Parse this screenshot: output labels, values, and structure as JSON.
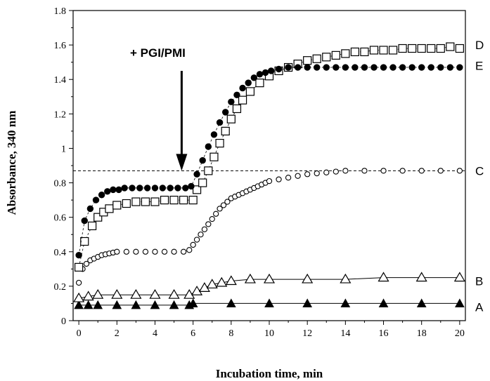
{
  "chart_data": {
    "type": "scatter",
    "xlabel": "Incubation time,  min",
    "ylabel": "Absorbance,  340 nm",
    "xlim": [
      -0.3,
      20.3
    ],
    "ylim": [
      0,
      1.8
    ],
    "x_ticks": [
      0,
      2,
      4,
      6,
      8,
      10,
      12,
      14,
      16,
      18,
      20
    ],
    "y_ticks": [
      0,
      0.2,
      0.4,
      0.6,
      0.8,
      1,
      1.2,
      1.4,
      1.6,
      1.8
    ],
    "grid": false,
    "reference_line": {
      "y": 0.87,
      "style": "dashed"
    },
    "annotation": {
      "text": "+  PGI/PMI",
      "arrow_x": 5.4,
      "arrow_from_y": 1.45,
      "arrow_to_y": 0.87
    },
    "series": [
      {
        "name": "A",
        "marker": "filled-triangle",
        "color": "#000000",
        "x": [
          0,
          0.5,
          1,
          2,
          3,
          4,
          5,
          5.8,
          6,
          8,
          10,
          12,
          14,
          16,
          18,
          20
        ],
        "y": [
          0.09,
          0.09,
          0.09,
          0.09,
          0.09,
          0.09,
          0.09,
          0.09,
          0.1,
          0.1,
          0.1,
          0.1,
          0.1,
          0.1,
          0.1,
          0.1
        ]
      },
      {
        "name": "B",
        "marker": "open-triangle",
        "color": "#000000",
        "x": [
          0,
          0.5,
          1,
          2,
          3,
          4,
          5,
          5.8,
          6.2,
          6.6,
          7,
          7.5,
          8,
          9,
          10,
          12,
          14,
          16,
          18,
          20
        ],
        "y": [
          0.13,
          0.14,
          0.15,
          0.15,
          0.15,
          0.15,
          0.15,
          0.15,
          0.17,
          0.19,
          0.21,
          0.22,
          0.23,
          0.24,
          0.24,
          0.24,
          0.24,
          0.25,
          0.25,
          0.25
        ]
      },
      {
        "name": "C",
        "marker": "open-circle",
        "color": "#000000",
        "x": [
          0,
          0.2,
          0.4,
          0.6,
          0.8,
          1,
          1.2,
          1.4,
          1.6,
          1.8,
          2,
          2.5,
          3,
          3.5,
          4,
          4.5,
          5,
          5.5,
          5.8,
          6,
          6.2,
          6.4,
          6.6,
          6.8,
          7,
          7.2,
          7.4,
          7.6,
          7.8,
          8,
          8.2,
          8.4,
          8.6,
          8.8,
          9,
          9.2,
          9.4,
          9.6,
          9.8,
          10,
          10.5,
          11,
          11.5,
          12,
          12.5,
          13,
          13.5,
          14,
          15,
          16,
          17,
          18,
          19,
          20
        ],
        "y": [
          0.22,
          0.3,
          0.33,
          0.35,
          0.36,
          0.37,
          0.38,
          0.385,
          0.39,
          0.395,
          0.4,
          0.4,
          0.4,
          0.4,
          0.4,
          0.4,
          0.4,
          0.4,
          0.41,
          0.44,
          0.47,
          0.5,
          0.53,
          0.56,
          0.59,
          0.62,
          0.65,
          0.67,
          0.69,
          0.71,
          0.72,
          0.73,
          0.74,
          0.75,
          0.76,
          0.77,
          0.78,
          0.79,
          0.8,
          0.81,
          0.82,
          0.83,
          0.84,
          0.85,
          0.855,
          0.86,
          0.865,
          0.87,
          0.87,
          0.87,
          0.87,
          0.87,
          0.87,
          0.87
        ]
      },
      {
        "name": "D",
        "marker": "open-square",
        "color": "#000000",
        "x": [
          0,
          0.3,
          0.7,
          1,
          1.3,
          1.6,
          2,
          2.5,
          3,
          3.5,
          4,
          4.5,
          5,
          5.5,
          6,
          6.2,
          6.5,
          6.8,
          7.1,
          7.4,
          7.7,
          8,
          8.3,
          8.6,
          9,
          9.5,
          10,
          10.5,
          11,
          11.5,
          12,
          12.5,
          13,
          13.5,
          14,
          14.5,
          15,
          15.5,
          16,
          16.5,
          17,
          17.5,
          18,
          18.5,
          19,
          19.5,
          20
        ],
        "y": [
          0.31,
          0.46,
          0.55,
          0.6,
          0.63,
          0.65,
          0.67,
          0.68,
          0.69,
          0.69,
          0.69,
          0.7,
          0.7,
          0.7,
          0.7,
          0.76,
          0.8,
          0.87,
          0.95,
          1.03,
          1.1,
          1.17,
          1.23,
          1.28,
          1.33,
          1.38,
          1.42,
          1.45,
          1.47,
          1.49,
          1.51,
          1.52,
          1.53,
          1.54,
          1.55,
          1.56,
          1.56,
          1.57,
          1.57,
          1.57,
          1.58,
          1.58,
          1.58,
          1.58,
          1.58,
          1.59,
          1.58
        ]
      },
      {
        "name": "E",
        "marker": "filled-circle",
        "color": "#000000",
        "x": [
          0,
          0.3,
          0.6,
          0.9,
          1.2,
          1.5,
          1.8,
          2.1,
          2.4,
          2.8,
          3.2,
          3.6,
          4,
          4.4,
          4.8,
          5.2,
          5.6,
          5.9,
          6.2,
          6.5,
          6.8,
          7.1,
          7.4,
          7.7,
          8,
          8.3,
          8.6,
          8.9,
          9.2,
          9.5,
          9.8,
          10.1,
          10.5,
          11,
          11.5,
          12,
          12.5,
          13,
          13.5,
          14,
          14.5,
          15,
          15.5,
          16,
          16.5,
          17,
          17.5,
          18,
          18.5,
          19,
          19.5,
          20
        ],
        "y": [
          0.38,
          0.58,
          0.65,
          0.7,
          0.73,
          0.75,
          0.76,
          0.76,
          0.77,
          0.77,
          0.77,
          0.77,
          0.77,
          0.77,
          0.77,
          0.77,
          0.77,
          0.78,
          0.85,
          0.93,
          1.01,
          1.08,
          1.15,
          1.21,
          1.27,
          1.31,
          1.35,
          1.38,
          1.41,
          1.43,
          1.44,
          1.45,
          1.46,
          1.47,
          1.47,
          1.47,
          1.47,
          1.47,
          1.47,
          1.47,
          1.47,
          1.47,
          1.47,
          1.47,
          1.47,
          1.47,
          1.47,
          1.47,
          1.47,
          1.47,
          1.47,
          1.47
        ]
      }
    ],
    "series_label_positions": {
      "A": 0.08,
      "B": 0.23,
      "C": 0.87,
      "D": 1.6,
      "E": 1.48
    }
  }
}
